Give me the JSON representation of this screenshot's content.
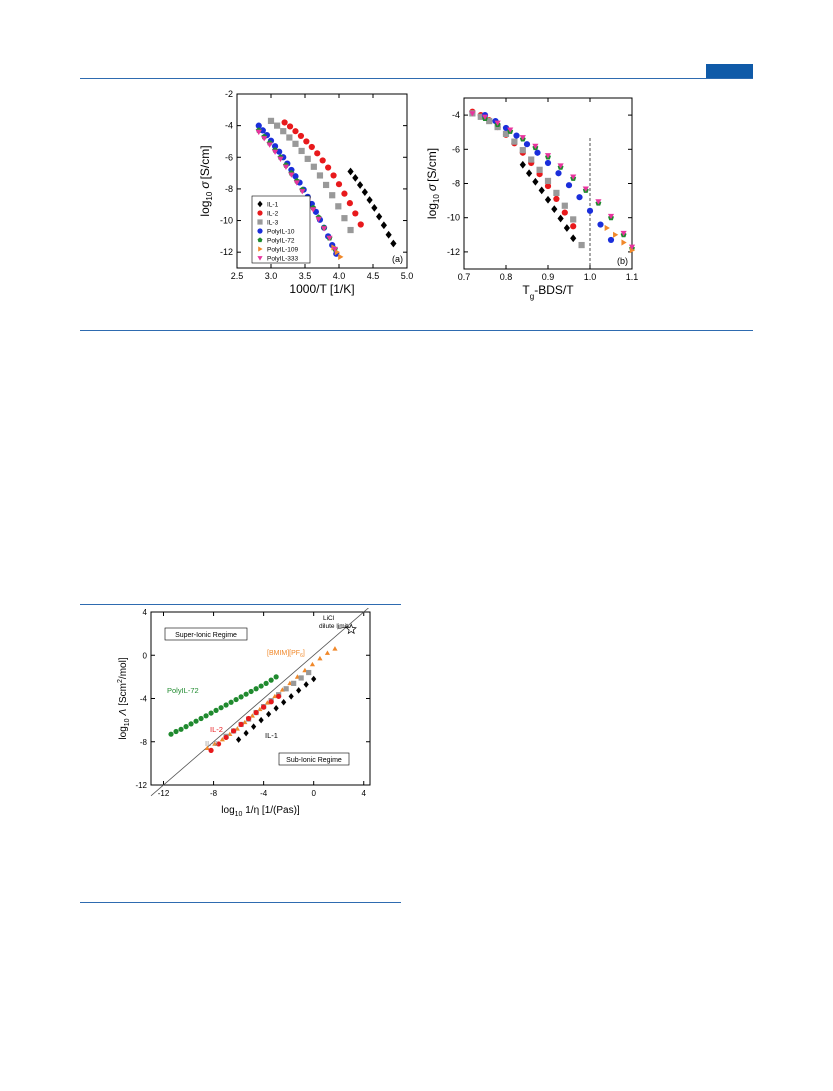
{
  "header": {
    "accent_color": "#0f5aa8",
    "rule_color": "#2e6bb0"
  },
  "chart_data": [
    {
      "id": "a",
      "type": "scatter",
      "panel_label": "(a)",
      "xlabel": "1000/T [1/K]",
      "ylabel_prefix": "log",
      "ylabel_sub": "10",
      "ylabel_symbol": "σ",
      "ylabel_unit": "[S/cm]",
      "xlim": [
        2.5,
        5.0
      ],
      "ylim": [
        -13,
        -2
      ],
      "xticks": [
        2.5,
        3.0,
        3.5,
        4.0,
        4.5,
        5.0
      ],
      "xtick_labels": [
        "2.5",
        "3.0",
        "3.5",
        "4.0",
        "4.5",
        "5.0"
      ],
      "yticks": [
        -12,
        -10,
        -8,
        -6,
        -4,
        -2
      ],
      "ytick_labels": [
        "-12",
        "-10",
        "-8",
        "-6",
        "-4",
        "-2"
      ],
      "legend_position": "bottom-left",
      "series": [
        {
          "name": "IL-1",
          "color": "#000000",
          "marker": "diamond",
          "x": [
            4.17,
            4.24,
            4.31,
            4.38,
            4.45,
            4.52,
            4.59,
            4.66,
            4.73,
            4.8
          ],
          "y": [
            -6.9,
            -7.3,
            -7.75,
            -8.2,
            -8.7,
            -9.2,
            -9.75,
            -10.3,
            -10.9,
            -11.45
          ]
        },
        {
          "name": "IL-2",
          "color": "#e8191c",
          "marker": "circle",
          "x": [
            3.2,
            3.28,
            3.36,
            3.44,
            3.52,
            3.6,
            3.68,
            3.76,
            3.84,
            3.92,
            4.0,
            4.08,
            4.16,
            4.24,
            4.32
          ],
          "y": [
            -3.8,
            -4.05,
            -4.35,
            -4.65,
            -5.0,
            -5.35,
            -5.75,
            -6.2,
            -6.65,
            -7.15,
            -7.7,
            -8.3,
            -8.9,
            -9.55,
            -10.25
          ]
        },
        {
          "name": "IL-3",
          "color": "#999999",
          "marker": "square",
          "x": [
            3.0,
            3.09,
            3.18,
            3.27,
            3.36,
            3.45,
            3.54,
            3.63,
            3.72,
            3.81,
            3.9,
            3.99,
            4.08,
            4.17
          ],
          "y": [
            -3.7,
            -4.0,
            -4.35,
            -4.75,
            -5.15,
            -5.6,
            -6.1,
            -6.6,
            -7.15,
            -7.75,
            -8.4,
            -9.1,
            -9.85,
            -10.6
          ]
        },
        {
          "name": "PolyIL-10",
          "color": "#1a2edb",
          "marker": "circle",
          "x": [
            2.82,
            2.88,
            2.94,
            3.0,
            3.06,
            3.12,
            3.18,
            3.24,
            3.3,
            3.36,
            3.42,
            3.48,
            3.54,
            3.6,
            3.66,
            3.72,
            3.78,
            3.84,
            3.9,
            3.96
          ],
          "y": [
            -4.0,
            -4.3,
            -4.6,
            -4.95,
            -5.3,
            -5.65,
            -6.0,
            -6.4,
            -6.8,
            -7.2,
            -7.6,
            -8.05,
            -8.5,
            -8.95,
            -9.45,
            -9.95,
            -10.45,
            -11.0,
            -11.55,
            -12.1
          ]
        },
        {
          "name": "PolyIL-72",
          "color": "#1f8a2e",
          "marker": "pentagon",
          "x": [
            2.82,
            2.9,
            2.98,
            3.06,
            3.14,
            3.22,
            3.3,
            3.38,
            3.46,
            3.54,
            3.62,
            3.7,
            3.78,
            3.86,
            3.94
          ],
          "y": [
            -4.3,
            -4.7,
            -5.1,
            -5.55,
            -6.0,
            -6.5,
            -7.0,
            -7.5,
            -8.05,
            -8.6,
            -9.2,
            -9.8,
            -10.45,
            -11.1,
            -11.8
          ]
        },
        {
          "name": "PolyIL-109",
          "color": "#f0882a",
          "marker": "triangle-right",
          "x": [
            3.92,
            3.97,
            4.02
          ],
          "y": [
            -11.7,
            -12.0,
            -12.3
          ]
        },
        {
          "name": "PolyIL-333",
          "color": "#e8349e",
          "marker": "triangle-down",
          "x": [
            2.82,
            2.9,
            2.98,
            3.06,
            3.14,
            3.22,
            3.3,
            3.38,
            3.46,
            3.54,
            3.62,
            3.7,
            3.78,
            3.86,
            3.94
          ],
          "y": [
            -4.4,
            -4.8,
            -5.2,
            -5.65,
            -6.1,
            -6.6,
            -7.1,
            -7.6,
            -8.15,
            -8.7,
            -9.3,
            -9.9,
            -10.5,
            -11.1,
            -11.8
          ]
        }
      ]
    },
    {
      "id": "b",
      "type": "scatter",
      "panel_label": "(b)",
      "xlabel_T": "T",
      "xlabel_sub": "g",
      "xlabel_rest": "-BDS/T",
      "ylabel_prefix": "log",
      "ylabel_sub": "10",
      "ylabel_symbol": "σ",
      "ylabel_unit": "[S/cm]",
      "xlim": [
        0.7,
        1.1
      ],
      "ylim": [
        -13,
        -3
      ],
      "xticks": [
        0.7,
        0.8,
        0.9,
        1.0,
        1.1
      ],
      "xtick_labels": [
        "0.7",
        "0.8",
        "0.9",
        "1.0",
        "1.1"
      ],
      "yticks": [
        -12,
        -10,
        -8,
        -6,
        -4
      ],
      "ytick_labels": [
        "-12",
        "-10",
        "-8",
        "-6",
        "-4"
      ],
      "reference_line_x": 1.0,
      "series": [
        {
          "name": "IL-1",
          "color": "#000000",
          "marker": "diamond",
          "x": [
            0.84,
            0.855,
            0.87,
            0.885,
            0.9,
            0.915,
            0.93,
            0.945,
            0.96
          ],
          "y": [
            -6.9,
            -7.4,
            -7.9,
            -8.4,
            -8.95,
            -9.5,
            -10.05,
            -10.6,
            -11.2
          ]
        },
        {
          "name": "IL-2",
          "color": "#e8191c",
          "marker": "circle",
          "x": [
            0.72,
            0.74,
            0.76,
            0.78,
            0.8,
            0.82,
            0.84,
            0.86,
            0.88,
            0.9,
            0.92,
            0.94,
            0.96
          ],
          "y": [
            -3.8,
            -4.0,
            -4.3,
            -4.7,
            -5.15,
            -5.65,
            -6.2,
            -6.8,
            -7.45,
            -8.15,
            -8.9,
            -9.7,
            -10.5
          ]
        },
        {
          "name": "IL-3",
          "color": "#999999",
          "marker": "square",
          "x": [
            0.72,
            0.74,
            0.76,
            0.78,
            0.8,
            0.82,
            0.84,
            0.86,
            0.88,
            0.9,
            0.92,
            0.94,
            0.96,
            0.98
          ],
          "y": [
            -3.9,
            -4.1,
            -4.35,
            -4.7,
            -5.1,
            -5.55,
            -6.05,
            -6.6,
            -7.2,
            -7.85,
            -8.55,
            -9.3,
            -10.1,
            -11.6
          ]
        },
        {
          "name": "PolyIL-10",
          "color": "#1a2edb",
          "marker": "circle",
          "x": [
            0.75,
            0.775,
            0.8,
            0.825,
            0.85,
            0.875,
            0.9,
            0.925,
            0.95,
            0.975,
            1.0,
            1.025,
            1.05
          ],
          "y": [
            -4.0,
            -4.35,
            -4.75,
            -5.2,
            -5.7,
            -6.2,
            -6.8,
            -7.4,
            -8.1,
            -8.8,
            -9.6,
            -10.4,
            -11.3
          ]
        },
        {
          "name": "PolyIL-72",
          "color": "#1f8a2e",
          "marker": "pentagon",
          "x": [
            0.75,
            0.78,
            0.81,
            0.84,
            0.87,
            0.9,
            0.93,
            0.96,
            0.99,
            1.02,
            1.05,
            1.08,
            1.1
          ],
          "y": [
            -4.2,
            -4.55,
            -4.95,
            -5.4,
            -5.9,
            -6.45,
            -7.05,
            -7.7,
            -8.4,
            -9.15,
            -10.0,
            -11.0,
            -11.8
          ]
        },
        {
          "name": "PolyIL-109",
          "color": "#f0882a",
          "marker": "triangle-right",
          "x": [
            1.04,
            1.06,
            1.08,
            1.1
          ],
          "y": [
            -10.6,
            -11.0,
            -11.45,
            -11.9
          ]
        },
        {
          "name": "PolyIL-333",
          "color": "#e8349e",
          "marker": "triangle-down",
          "x": [
            0.72,
            0.75,
            0.78,
            0.81,
            0.84,
            0.87,
            0.9,
            0.93,
            0.96,
            0.99,
            1.02,
            1.05,
            1.08,
            1.1
          ],
          "y": [
            -3.9,
            -4.1,
            -4.45,
            -4.85,
            -5.3,
            -5.8,
            -6.35,
            -6.95,
            -7.6,
            -8.3,
            -9.05,
            -9.9,
            -10.9,
            -11.7
          ]
        }
      ]
    },
    {
      "id": "c",
      "type": "scatter",
      "xlabel_prefix": "log",
      "xlabel_sub": "10",
      "xlabel_rest": " 1/η  [1/(Pas)]",
      "ylabel_prefix": "log",
      "ylabel_sub": "10",
      "ylabel_symbol": "Λ",
      "ylabel_unit": "[Scm",
      "ylabel_sup": "2",
      "ylabel_tail": "/mol]",
      "xlim": [
        -13,
        4.5
      ],
      "ylim": [
        -12,
        4
      ],
      "xticks": [
        -12,
        -8,
        -4,
        0,
        4
      ],
      "xtick_labels": [
        "-12",
        "-8",
        "-4",
        "0",
        "4"
      ],
      "yticks": [
        -12,
        -8,
        -4,
        0,
        4
      ],
      "ytick_labels": [
        "-12",
        "-8",
        "-4",
        "0",
        "4"
      ],
      "regime_upper": "Super-Ionic Regime",
      "regime_lower": "Sub-Ionic Regime",
      "reference_line": {
        "x": [
          -13,
          4.5
        ],
        "y": [
          -13,
          4.5
        ]
      },
      "annotations": {
        "licl_line1": "LiCl",
        "licl_line2": "dilute limit",
        "licl_point": {
          "x": 3.0,
          "y": 2.4
        },
        "bmim_prefix": "[BMIM][PF",
        "bmim_sub": "6",
        "bmim_suffix": "]",
        "polyil72": "PolyIL-72",
        "il2": "IL-2",
        "il3": "IL-3",
        "il1": "IL-1"
      },
      "series": [
        {
          "name": "PolyIL-72",
          "color": "#1f8a2e",
          "marker": "circle",
          "x": [
            -11.4,
            -11.0,
            -10.6,
            -10.2,
            -9.8,
            -9.4,
            -9.0,
            -8.6,
            -8.2,
            -7.8,
            -7.4,
            -7.0,
            -6.6,
            -6.2,
            -5.8,
            -5.4,
            -5.0,
            -4.6,
            -4.2,
            -3.8,
            -3.4,
            -3.0
          ],
          "y": [
            -7.3,
            -7.05,
            -6.85,
            -6.6,
            -6.35,
            -6.1,
            -5.85,
            -5.6,
            -5.35,
            -5.1,
            -4.85,
            -4.6,
            -4.35,
            -4.1,
            -3.85,
            -3.6,
            -3.35,
            -3.1,
            -2.85,
            -2.6,
            -2.3,
            -2.0
          ]
        },
        {
          "name": "[BMIM][PF6]",
          "color": "#f0882a",
          "marker": "triangle-up",
          "x": [
            -8.5,
            -7.9,
            -7.3,
            -6.7,
            -6.1,
            -5.5,
            -4.9,
            -4.3,
            -3.7,
            -3.1,
            -2.5,
            -1.9,
            -1.3,
            -0.7,
            -0.1,
            0.5,
            1.1,
            1.7
          ],
          "y": [
            -8.6,
            -8.2,
            -7.8,
            -7.3,
            -6.8,
            -6.2,
            -5.6,
            -5.0,
            -4.4,
            -3.8,
            -3.2,
            -2.6,
            -2.0,
            -1.4,
            -0.85,
            -0.3,
            0.2,
            0.6
          ]
        },
        {
          "name": "IL-3",
          "color": "#999999",
          "marker": "square",
          "x": [
            -7.0,
            -6.4,
            -5.8,
            -5.2,
            -4.6,
            -4.0,
            -3.4,
            -2.8,
            -2.2,
            -1.6,
            -1.0,
            -0.4
          ],
          "y": [
            -7.5,
            -7.0,
            -6.4,
            -5.9,
            -5.3,
            -4.75,
            -4.2,
            -3.65,
            -3.1,
            -2.6,
            -2.1,
            -1.6
          ]
        },
        {
          "name": "IL-2",
          "color": "#e8191c",
          "marker": "circle",
          "x": [
            -8.2,
            -7.6,
            -7.0,
            -6.4,
            -5.8,
            -5.2,
            -4.6,
            -4.0,
            -3.4,
            -2.8
          ],
          "y": [
            -8.8,
            -8.2,
            -7.6,
            -7.0,
            -6.4,
            -5.85,
            -5.3,
            -4.8,
            -4.3,
            -3.8
          ]
        },
        {
          "name": "IL-1",
          "color": "#000000",
          "marker": "diamond",
          "x": [
            -6.0,
            -5.4,
            -4.8,
            -4.2,
            -3.6,
            -3.0,
            -2.4,
            -1.8,
            -1.2,
            -0.6,
            0.0
          ],
          "y": [
            -7.8,
            -7.2,
            -6.6,
            -6.0,
            -5.45,
            -4.9,
            -4.35,
            -3.8,
            -3.25,
            -2.7,
            -2.2
          ]
        }
      ]
    }
  ]
}
